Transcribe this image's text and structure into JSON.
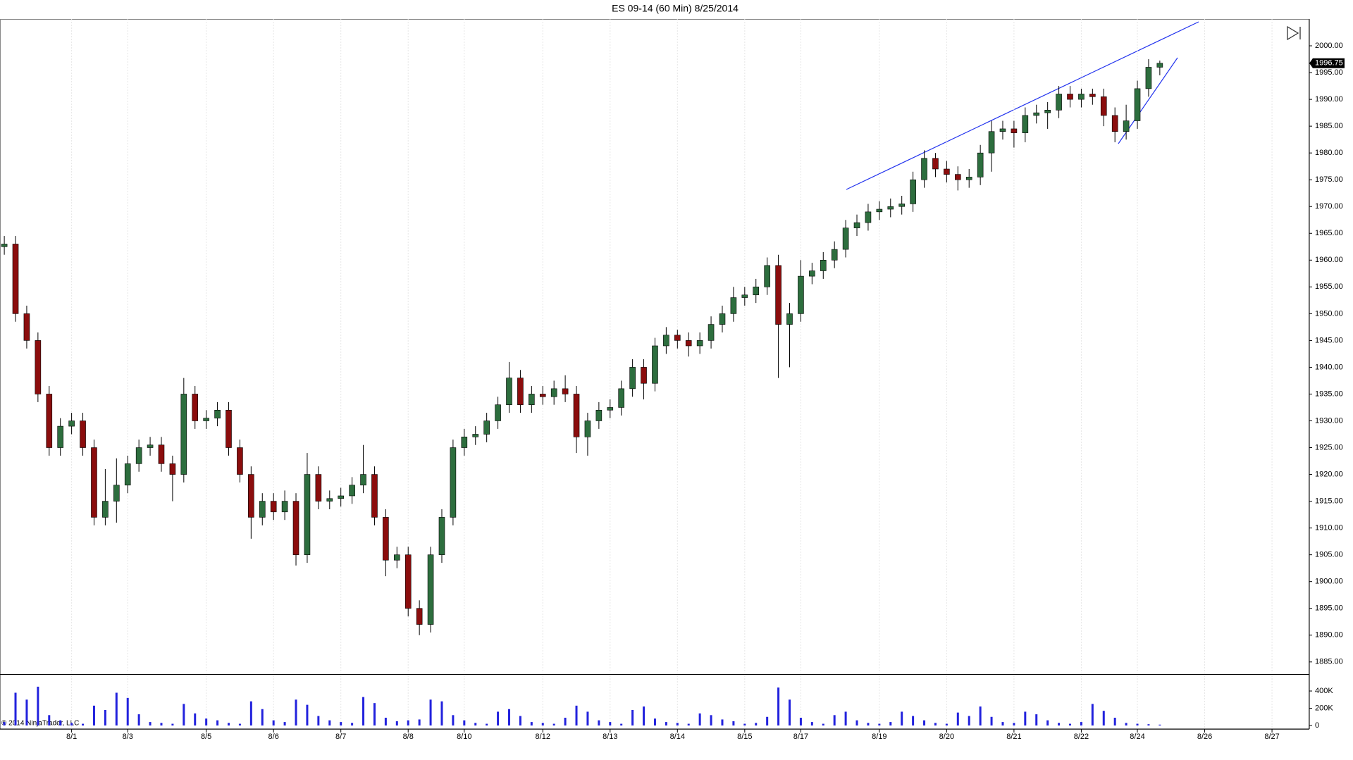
{
  "chart_data": {
    "type": "candlestick",
    "title": "ES 09-14 (60 Min)  8/25/2014",
    "copyright": "© 2014 NinjaTrader, LLC",
    "categories": [
      null,
      null,
      null,
      null,
      null,
      null,
      "8/1",
      null,
      null,
      null,
      null,
      "8/3",
      null,
      null,
      null,
      null,
      null,
      null,
      "8/5",
      null,
      null,
      null,
      null,
      null,
      "8/6",
      null,
      null,
      null,
      null,
      null,
      "8/7",
      null,
      null,
      null,
      null,
      null,
      "8/8",
      null,
      null,
      null,
      null,
      "8/10",
      null,
      null,
      null,
      null,
      null,
      null,
      "8/12",
      null,
      null,
      null,
      null,
      null,
      "8/13",
      null,
      null,
      null,
      null,
      null,
      "8/14",
      null,
      null,
      null,
      null,
      null,
      "8/15",
      null,
      null,
      null,
      null,
      "8/17",
      null,
      null,
      null,
      null,
      null,
      null,
      "8/19",
      null,
      null,
      null,
      null,
      null,
      "8/20",
      null,
      null,
      null,
      null,
      null,
      "8/21",
      null,
      null,
      null,
      null,
      null,
      "8/22",
      null,
      null,
      null,
      null,
      "8/24",
      null,
      null,
      null,
      null,
      null,
      "8/26",
      null,
      null,
      null,
      null,
      null,
      "8/27",
      null
    ],
    "open": [
      1962.5,
      1963,
      1950,
      1945,
      1935,
      1925,
      1929,
      1930,
      1925,
      1912,
      1915,
      1918,
      1922,
      1925,
      1925.5,
      1922,
      1920,
      1935,
      1930,
      1930.5,
      1932,
      1925,
      1920,
      1912,
      1915,
      1913,
      1915,
      1905,
      1920,
      1915,
      1915.5,
      1916,
      1918,
      1920,
      1912,
      1904,
      1905,
      1895,
      1892,
      1905,
      1912,
      1925,
      1927,
      1927.5,
      1930,
      1933,
      1938,
      1933,
      1935,
      1934.5,
      1936,
      1935,
      1927,
      1930,
      1932,
      1932.5,
      1936,
      1940,
      1937,
      1944,
      1946,
      1945,
      1944,
      1945,
      1948,
      1950,
      1953,
      1953.5,
      1955,
      1959,
      1948,
      1950,
      1957,
      1958,
      1960,
      1962,
      1966,
      1967,
      1969,
      1969.5,
      1970,
      1970.5,
      1975,
      1979,
      1977,
      1976,
      1975,
      1975.5,
      1980,
      1984,
      1984.5,
      1983.75,
      1987,
      1987.5,
      1988,
      1991,
      1990,
      1991,
      1990.5,
      1987,
      1984,
      1986,
      1992,
      1996,
      null,
      null,
      null,
      null,
      null,
      null,
      null,
      null,
      null,
      null,
      null
    ],
    "high": [
      1964.5,
      1964.5,
      1951.5,
      1946.5,
      1936.5,
      1930.5,
      1931.5,
      1931.5,
      1926.5,
      1921,
      1923,
      1923.5,
      1926.5,
      1927,
      1927,
      1923.5,
      1938,
      1936.5,
      1932,
      1933.5,
      1933.5,
      1926.5,
      1921.5,
      1916.5,
      1916.5,
      1917,
      1916.5,
      1924,
      1921.5,
      1917,
      1917.5,
      1919.5,
      1925.5,
      1921.5,
      1913.5,
      1906.5,
      1906.5,
      1896.5,
      1906.5,
      1913.5,
      1926.5,
      1928.5,
      1929,
      1931.5,
      1934.5,
      1941,
      1939.5,
      1936.5,
      1936.5,
      1937.5,
      1938.5,
      1936.5,
      1931.5,
      1933.5,
      1934,
      1937.5,
      1941.5,
      1941.5,
      1945.5,
      1947.5,
      1947,
      1946.5,
      1946.5,
      1949.5,
      1951.5,
      1955,
      1955,
      1956.5,
      1960.5,
      1961,
      1952,
      1960,
      1959.5,
      1961.5,
      1963.5,
      1967.5,
      1968.5,
      1970.5,
      1971,
      1971.5,
      1972,
      1976.5,
      1980.5,
      1980,
      1978.5,
      1977.5,
      1977,
      1981.5,
      1986,
      1986,
      1986,
      1988.5,
      1989,
      1989.5,
      1992.5,
      1992.5,
      1992,
      1992,
      1992,
      1988.5,
      1989,
      1993.5,
      1997.5,
      1997.25,
      null,
      null,
      null,
      null,
      null,
      null,
      null,
      null,
      null,
      null,
      null
    ],
    "low": [
      1961,
      1948.5,
      1943.5,
      1933.5,
      1923.5,
      1923.5,
      1927.5,
      1923.5,
      1910.5,
      1910.5,
      1911,
      1916.5,
      1920.5,
      1923.5,
      1920.5,
      1915,
      1918.5,
      1928.5,
      1928.5,
      1929,
      1923.5,
      1918.5,
      1908,
      1910.5,
      1911.5,
      1911.5,
      1903,
      1903.5,
      1913.5,
      1913.5,
      1914,
      1914.5,
      1916.5,
      1910.5,
      1901,
      1902.5,
      1893.5,
      1890,
      1890.5,
      1903.5,
      1910.5,
      1923.5,
      1925.5,
      1926,
      1928.5,
      1931.5,
      1931.5,
      1931.5,
      1933,
      1933,
      1933.5,
      1924,
      1923.5,
      1928.5,
      1930.5,
      1931,
      1934.5,
      1934,
      1935.5,
      1942.5,
      1943.5,
      1942,
      1942.5,
      1943.5,
      1946.5,
      1948.5,
      1951.5,
      1952,
      1953.5,
      1938,
      1940,
      1948.5,
      1955.5,
      1956.5,
      1958.5,
      1960.5,
      1964.5,
      1965.5,
      1967.5,
      1968,
      1968.5,
      1969,
      1973.5,
      1975.5,
      1974.5,
      1973,
      1973.5,
      1974,
      1976.5,
      1982.5,
      1981,
      1982,
      1985.5,
      1984.5,
      1986.5,
      1988.5,
      1988.5,
      1989,
      1985,
      1982,
      1982.5,
      1984.5,
      1990.5,
      1994.5,
      null,
      null,
      null,
      null,
      null,
      null,
      null,
      null,
      null,
      null,
      null
    ],
    "close": [
      1963,
      1950,
      1945,
      1935,
      1925,
      1929,
      1930,
      1925,
      1912,
      1915,
      1918,
      1922,
      1925,
      1925.5,
      1922,
      1920,
      1935,
      1930,
      1930.5,
      1932,
      1925,
      1920,
      1912,
      1915,
      1913,
      1915,
      1905,
      1920,
      1915,
      1915.5,
      1916,
      1918,
      1920,
      1912,
      1904,
      1905,
      1895,
      1892,
      1905,
      1912,
      1925,
      1927,
      1927.5,
      1930,
      1933,
      1938,
      1933,
      1935,
      1934.5,
      1936,
      1935,
      1927,
      1930,
      1932,
      1932.5,
      1936,
      1940,
      1937,
      1944,
      1946,
      1945,
      1944,
      1945,
      1948,
      1950,
      1953,
      1953.5,
      1955,
      1959,
      1948,
      1950,
      1957,
      1958,
      1960,
      1962,
      1966,
      1967,
      1969,
      1969.5,
      1970,
      1970.5,
      1975,
      1979,
      1977,
      1976,
      1975,
      1975.5,
      1980,
      1984,
      1984.5,
      1983.75,
      1987,
      1987.5,
      1988,
      1991,
      1990,
      1991,
      1990.5,
      1987,
      1984,
      1986,
      1992,
      1996,
      1996.75,
      null,
      null,
      null,
      null,
      null,
      null,
      null,
      null,
      null,
      null,
      null
    ],
    "up_color": "#2d6e3e",
    "down_color": "#8b0d0d",
    "ylim": [
      1883,
      2005
    ],
    "yticks": [
      {
        "value": 1885,
        "label": "1885.00"
      },
      {
        "value": 1890,
        "label": "1890.00"
      },
      {
        "value": 1895,
        "label": "1895.00"
      },
      {
        "value": 1900,
        "label": "1900.00"
      },
      {
        "value": 1905,
        "label": "1905.00"
      },
      {
        "value": 1910,
        "label": "1910.00"
      },
      {
        "value": 1915,
        "label": "1915.00"
      },
      {
        "value": 1920,
        "label": "1920.00"
      },
      {
        "value": 1925,
        "label": "1925.00"
      },
      {
        "value": 1930,
        "label": "1930.00"
      },
      {
        "value": 1935,
        "label": "1935.00"
      },
      {
        "value": 1940,
        "label": "1940.00"
      },
      {
        "value": 1945,
        "label": "1945.00"
      },
      {
        "value": 1950,
        "label": "1950.00"
      },
      {
        "value": 1955,
        "label": "1955.00"
      },
      {
        "value": 1960,
        "label": "1960.00"
      },
      {
        "value": 1965,
        "label": "1965.00"
      },
      {
        "value": 1970,
        "label": "1970.00"
      },
      {
        "value": 1975,
        "label": "1975.00"
      },
      {
        "value": 1980,
        "label": "1980.00"
      },
      {
        "value": 1985,
        "label": "1985.00"
      },
      {
        "value": 1990,
        "label": "1990.00"
      },
      {
        "value": 1995,
        "label": "1995.00"
      },
      {
        "value": 2000,
        "label": "2000.00"
      }
    ],
    "grid": true,
    "volume": {
      "color": "#2222dd",
      "ylim": [
        0,
        580000
      ],
      "yticks": [
        0,
        {
          "value": 200000,
          "label": "200K"
        },
        {
          "value": 400000,
          "label": "400K"
        }
      ],
      "values": [
        40000,
        380000,
        300000,
        450000,
        120000,
        60000,
        30000,
        20000,
        230000,
        180000,
        380000,
        320000,
        130000,
        40000,
        30000,
        20000,
        250000,
        140000,
        80000,
        60000,
        30000,
        20000,
        280000,
        190000,
        60000,
        40000,
        300000,
        240000,
        110000,
        60000,
        40000,
        30000,
        330000,
        260000,
        90000,
        50000,
        60000,
        70000,
        300000,
        280000,
        120000,
        60000,
        30000,
        20000,
        160000,
        190000,
        110000,
        40000,
        30000,
        20000,
        90000,
        230000,
        160000,
        60000,
        40000,
        20000,
        180000,
        220000,
        80000,
        40000,
        30000,
        20000,
        140000,
        120000,
        70000,
        50000,
        20000,
        30000,
        100000,
        440000,
        300000,
        90000,
        40000,
        20000,
        120000,
        160000,
        60000,
        30000,
        20000,
        40000,
        160000,
        110000,
        60000,
        30000,
        20000,
        150000,
        110000,
        220000,
        100000,
        40000,
        30000,
        160000,
        130000,
        60000,
        30000,
        20000,
        40000,
        250000,
        170000,
        90000,
        30000,
        20000,
        15000,
        10000,
        null,
        null,
        null,
        null,
        null,
        null,
        null,
        null,
        null,
        null,
        null
      ]
    }
  }
}
